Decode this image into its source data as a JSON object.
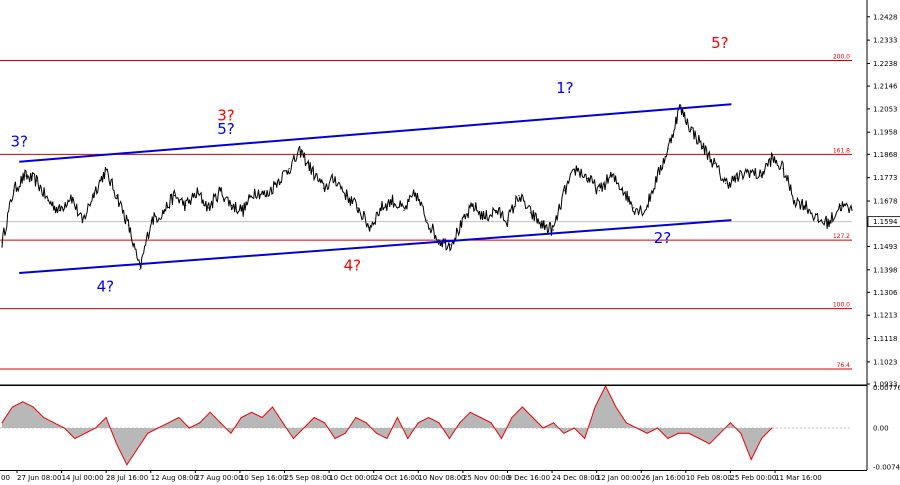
{
  "chart_data": [
    {
      "type": "line",
      "title": "",
      "xlabel": "",
      "ylabel": "",
      "ylim": [
        1.0933,
        1.2476
      ],
      "grid": false,
      "y_ticks": [
        "1.2428",
        "1.2333",
        "1.2238",
        "1.2146",
        "1.2053",
        "1.1958",
        "1.1868",
        "1.1773",
        "1.1678",
        "1.1586",
        "1.1493",
        "1.1398",
        "1.1306",
        "1.1213",
        "1.1118",
        "1.1023",
        "1.0933"
      ],
      "y_tick_values": [
        1.2428,
        1.2333,
        1.2238,
        1.2146,
        1.2053,
        1.1958,
        1.1868,
        1.1773,
        1.1678,
        1.1586,
        1.1493,
        1.1398,
        1.1306,
        1.1213,
        1.1118,
        1.1023,
        1.0933
      ],
      "x_ticks": [
        "27 Jun 08:00",
        "14 Jul 00:00",
        "28 Jul 16:00",
        "12 Aug 08:00",
        "27 Aug 00:00",
        "10 Sep 16:00",
        "25 Sep 08:00",
        "10 Oct 00:00",
        "24 Oct 16:00",
        "10 Nov 08:00",
        "25 Nov 00:00",
        "9 Dec 16:00",
        "24 Dec 08:00",
        "12 Jan 00:00",
        "26 Jan 16:00",
        "10 Feb 08:00",
        "25 Feb 00:00",
        "11 Mar 16:00"
      ],
      "first_x_label_fragment": "00",
      "current_price": "1.1594",
      "series": [
        {
          "values": [
            1.151,
            1.172,
            1.178,
            1.176,
            1.168,
            1.164,
            1.17,
            1.159,
            1.171,
            1.18,
            1.17,
            1.158,
            1.14,
            1.16,
            1.163,
            1.17,
            1.166,
            1.171,
            1.165,
            1.172,
            1.166,
            1.164,
            1.172,
            1.17,
            1.176,
            1.181,
            1.188,
            1.18,
            1.173,
            1.177,
            1.17,
            1.165,
            1.157,
            1.165,
            1.168,
            1.164,
            1.171,
            1.16,
            1.152,
            1.15,
            1.158,
            1.166,
            1.161,
            1.164,
            1.16,
            1.17,
            1.163,
            1.158,
            1.156,
            1.172,
            1.181,
            1.177,
            1.172,
            1.178,
            1.173,
            1.165,
            1.164,
            1.177,
            1.189,
            1.206,
            1.197,
            1.19,
            1.183,
            1.175,
            1.177,
            1.18,
            1.178,
            1.185,
            1.181,
            1.168,
            1.166,
            1.16,
            1.159,
            1.166,
            1.164
          ]
        }
      ],
      "levels": [
        {
          "label": "200.0",
          "value": 1.225
        },
        {
          "label": "161.8",
          "value": 1.1868
        },
        {
          "label": "127.2",
          "value": 1.1519
        },
        {
          "label": "100.0",
          "value": 1.124
        },
        {
          "label": "76.4",
          "value": 1.0994
        }
      ],
      "channel_lines": [
        {
          "name": "upper",
          "from": [
            1.5,
            1.1838
          ],
          "to": [
            63.5,
            1.2072
          ]
        },
        {
          "name": "lower",
          "from": [
            1.5,
            1.1385
          ],
          "to": [
            63.5,
            1.16
          ]
        }
      ],
      "wave_labels": [
        {
          "text": "3?",
          "color": "#0000ff",
          "x": 1.5,
          "y": 1.19
        },
        {
          "text": "4?",
          "color": "#0000ff",
          "x": 9,
          "y": 1.131
        },
        {
          "text": "3?",
          "color": "#ff0000",
          "x": 19.5,
          "y": 1.2005
        },
        {
          "text": "5?",
          "color": "#0000ff",
          "x": 19.5,
          "y": 1.195
        },
        {
          "text": "4?",
          "color": "#ff0000",
          "x": 30.5,
          "y": 1.1395
        },
        {
          "text": "1?",
          "color": "#0000ff",
          "x": 49,
          "y": 1.2117
        },
        {
          "text": "2?",
          "color": "#0000ff",
          "x": 57.5,
          "y": 1.1508
        },
        {
          "text": "5?",
          "color": "#ff0000",
          "x": 62.5,
          "y": 1.23
        }
      ]
    },
    {
      "type": "area",
      "title": "",
      "ylim": [
        -0.008,
        0.0082
      ],
      "y_ticks": [
        "0.00776",
        "0.00",
        "-0.0074"
      ],
      "y_tick_values": [
        0.00776,
        0.0,
        -0.0074
      ],
      "series": [
        {
          "values": [
            0.001,
            0.004,
            0.005,
            0.004,
            0.002,
            0.001,
            0.0,
            -0.002,
            -0.001,
            0.0,
            0.002,
            -0.003,
            -0.007,
            -0.004,
            -0.001,
            0.0,
            0.001,
            0.002,
            0.0,
            0.001,
            0.003,
            0.001,
            -0.001,
            0.002,
            0.003,
            0.002,
            0.004,
            0.001,
            -0.002,
            0.0,
            0.002,
            0.001,
            -0.002,
            -0.001,
            0.002,
            0.001,
            -0.001,
            -0.002,
            0.002,
            -0.002,
            0.001,
            0.002,
            0.001,
            -0.002,
            0.001,
            0.003,
            0.002,
            0.001,
            -0.002,
            0.002,
            0.004,
            0.002,
            0.0,
            0.001,
            -0.001,
            0.0,
            -0.002,
            0.004,
            0.008,
            0.004,
            0.001,
            0.0,
            -0.001,
            0.0,
            -0.002,
            -0.001,
            -0.001,
            -0.002,
            -0.003,
            -0.001,
            0.001,
            -0.001,
            -0.006,
            -0.002,
            0.0
          ]
        }
      ]
    }
  ]
}
